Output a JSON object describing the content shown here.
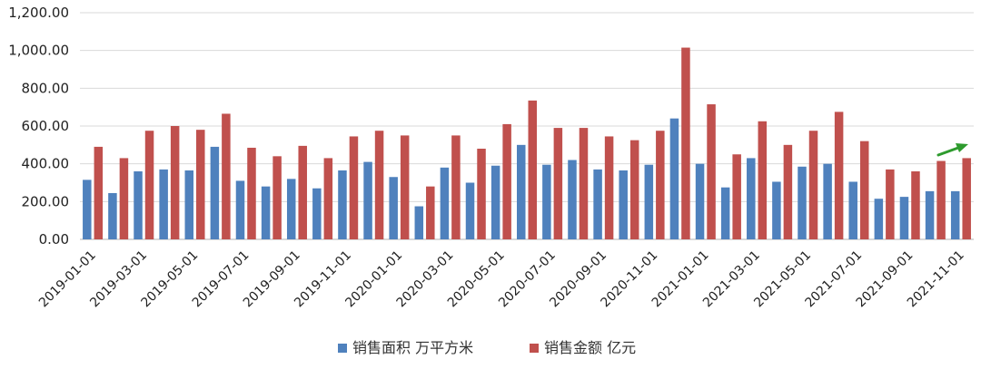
{
  "chart_data": {
    "type": "bar",
    "categories": [
      "2019-01-01",
      "2019-02-01",
      "2019-03-01",
      "2019-04-01",
      "2019-05-01",
      "2019-06-01",
      "2019-07-01",
      "2019-08-01",
      "2019-09-01",
      "2019-10-01",
      "2019-11-01",
      "2019-12-01",
      "2020-01-01",
      "2020-02-01",
      "2020-03-01",
      "2020-04-01",
      "2020-05-01",
      "2020-06-01",
      "2020-07-01",
      "2020-08-01",
      "2020-09-01",
      "2020-10-01",
      "2020-11-01",
      "2020-12-01",
      "2021-01-01",
      "2021-02-01",
      "2021-03-01",
      "2021-04-01",
      "2021-05-01",
      "2021-06-01",
      "2021-07-01",
      "2021-08-01",
      "2021-09-01",
      "2021-10-01",
      "2021-11-01"
    ],
    "x_tick_labels": [
      "2019-01-01",
      "2019-03-01",
      "2019-05-01",
      "2019-07-01",
      "2019-09-01",
      "2019-11-01",
      "2020-01-01",
      "2020-03-01",
      "2020-05-01",
      "2020-07-01",
      "2020-09-01",
      "2020-11-01",
      "2021-01-01",
      "2021-03-01",
      "2021-05-01",
      "2021-07-01",
      "2021-09-01",
      "2021-11-01"
    ],
    "series": [
      {
        "name": "销售面积 万平方米",
        "color": "#4F81BD",
        "values": [
          315,
          245,
          360,
          370,
          365,
          490,
          310,
          280,
          320,
          270,
          365,
          410,
          330,
          175,
          380,
          300,
          390,
          500,
          395,
          420,
          370,
          365,
          395,
          640,
          400,
          275,
          430,
          305,
          385,
          400,
          305,
          215,
          225,
          255,
          255
        ]
      },
      {
        "name": "销售金额 亿元",
        "color": "#C0504D",
        "values": [
          490,
          430,
          575,
          600,
          580,
          665,
          485,
          440,
          495,
          430,
          545,
          575,
          550,
          280,
          550,
          480,
          610,
          735,
          590,
          590,
          545,
          525,
          575,
          1015,
          715,
          450,
          625,
          500,
          575,
          675,
          520,
          370,
          360,
          415,
          430
        ]
      }
    ],
    "y_tick_labels": [
      "0.00",
      "200.00",
      "400.00",
      "600.00",
      "800.00",
      "1,000.00",
      "1,200.00"
    ],
    "ylim": [
      0,
      1200
    ],
    "grid": true,
    "legend_position": "bottom",
    "annotation": {
      "type": "arrow",
      "color": "#2E9B2E",
      "direction": "up-right"
    }
  }
}
